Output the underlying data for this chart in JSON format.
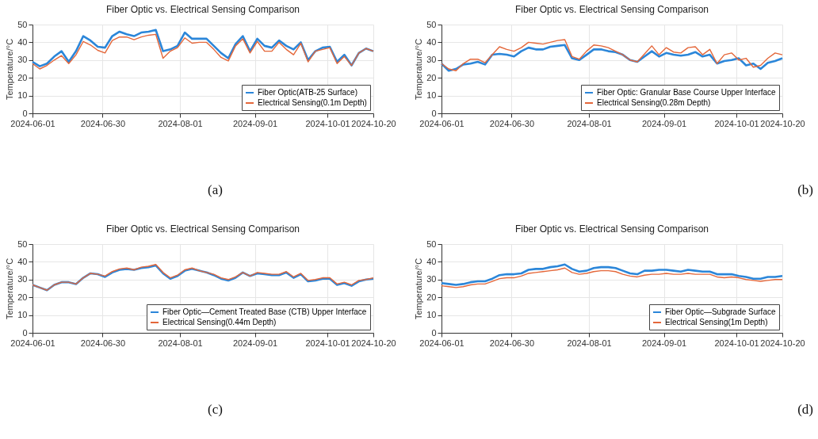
{
  "chart_data": [
    {
      "type": "line",
      "title": "Fiber Optic vs. Electrical Sensing Comparison",
      "ylabel": "Temperature/°C",
      "annotations": [
        "(a)"
      ],
      "x": [
        "2024-06-01",
        "2024-06-04",
        "2024-06-07",
        "2024-06-10",
        "2024-06-13",
        "2024-06-16",
        "2024-06-19",
        "2024-06-22",
        "2024-06-25",
        "2024-06-28",
        "2024-07-01",
        "2024-07-04",
        "2024-07-07",
        "2024-07-10",
        "2024-07-13",
        "2024-07-16",
        "2024-07-19",
        "2024-07-22",
        "2024-07-25",
        "2024-07-28",
        "2024-07-31",
        "2024-08-03",
        "2024-08-06",
        "2024-08-09",
        "2024-08-12",
        "2024-08-15",
        "2024-08-18",
        "2024-08-21",
        "2024-08-24",
        "2024-08-27",
        "2024-08-30",
        "2024-09-02",
        "2024-09-05",
        "2024-09-08",
        "2024-09-11",
        "2024-09-14",
        "2024-09-17",
        "2024-09-20",
        "2024-09-23",
        "2024-09-26",
        "2024-09-29",
        "2024-10-02",
        "2024-10-05",
        "2024-10-08",
        "2024-10-11",
        "2024-10-14",
        "2024-10-17",
        "2024-10-20"
      ],
      "series": [
        {
          "name": "Fiber Optic(ATB-25 Surface)",
          "color": "#2b86d9",
          "values": [
            29,
            26.5,
            28,
            32,
            35,
            29,
            35,
            43.5,
            41,
            37.5,
            37,
            43.5,
            46,
            44.5,
            43.5,
            45.5,
            46,
            47,
            35,
            36,
            38,
            45.5,
            42,
            42,
            42,
            38,
            34,
            31,
            39,
            43.5,
            35,
            42,
            38,
            37,
            41,
            38,
            36,
            40,
            30,
            35,
            37,
            37.5,
            29,
            33,
            27,
            34,
            36.5,
            35
          ]
        },
        {
          "name": "Electrical Sensing(0.1m Depth)",
          "color": "#e4673a",
          "values": [
            28,
            25,
            27,
            30,
            32.5,
            28,
            33,
            40.5,
            38.5,
            35.5,
            34,
            41,
            43,
            43,
            41.5,
            43,
            44,
            44.5,
            31,
            35,
            37,
            42.5,
            39.5,
            40,
            40,
            36,
            31.5,
            29.5,
            38,
            42,
            34,
            40.5,
            35,
            35,
            40,
            36,
            33,
            39.5,
            29,
            35,
            36,
            37,
            28,
            32,
            27,
            34,
            36.5,
            35
          ]
        }
      ],
      "xlim": [
        "2024-06-01",
        "2024-10-20"
      ],
      "xticks": [
        "2024-06-01",
        "2024-06-30",
        "2024-08-01",
        "2024-09-01",
        "2024-10-01",
        "2024-10-20"
      ],
      "ylim": [
        0,
        50
      ],
      "yticks": [
        0,
        10,
        20,
        30,
        40,
        50
      ],
      "grid": true,
      "legend": "bottom right"
    },
    {
      "type": "line",
      "title": "Fiber Optic vs. Electrical Sensing Comparison",
      "ylabel": "Temperature/°C",
      "annotations": [
        "(b)"
      ],
      "x": [
        "2024-06-01",
        "2024-06-04",
        "2024-06-07",
        "2024-06-10",
        "2024-06-13",
        "2024-06-16",
        "2024-06-19",
        "2024-06-22",
        "2024-06-25",
        "2024-06-28",
        "2024-07-01",
        "2024-07-04",
        "2024-07-07",
        "2024-07-10",
        "2024-07-13",
        "2024-07-16",
        "2024-07-19",
        "2024-07-22",
        "2024-07-25",
        "2024-07-28",
        "2024-07-31",
        "2024-08-03",
        "2024-08-06",
        "2024-08-09",
        "2024-08-12",
        "2024-08-15",
        "2024-08-18",
        "2024-08-21",
        "2024-08-24",
        "2024-08-27",
        "2024-08-30",
        "2024-09-02",
        "2024-09-05",
        "2024-09-08",
        "2024-09-11",
        "2024-09-14",
        "2024-09-17",
        "2024-09-20",
        "2024-09-23",
        "2024-09-26",
        "2024-09-29",
        "2024-10-02",
        "2024-10-05",
        "2024-10-08",
        "2024-10-11",
        "2024-10-14",
        "2024-10-17",
        "2024-10-20"
      ],
      "series": [
        {
          "name": "Fiber Optic: Granular Base Course Upper Interface",
          "color": "#2b86d9",
          "values": [
            28,
            24,
            25,
            27.5,
            28,
            29,
            27.5,
            33,
            33.5,
            33,
            32,
            35,
            37,
            36,
            36,
            37.5,
            38,
            38.5,
            31,
            30,
            33,
            36,
            36,
            35,
            34.5,
            33,
            30,
            29,
            32,
            35,
            32,
            34,
            33,
            32.5,
            33,
            34.5,
            32,
            33,
            28,
            29.5,
            30,
            31,
            27,
            28,
            25,
            28.5,
            29.5,
            31
          ]
        },
        {
          "name": "Electrical Sensing(0.28m Depth)",
          "color": "#e4673a",
          "values": [
            28,
            25,
            24,
            28,
            30.5,
            30.5,
            28.5,
            33,
            37.5,
            36,
            35,
            37,
            40,
            39.5,
            39,
            40,
            41,
            41.5,
            32,
            30.5,
            35,
            38.5,
            38,
            37,
            35,
            33,
            30,
            29,
            33.5,
            38,
            33,
            37,
            34.5,
            34,
            37,
            37.5,
            33,
            36,
            28,
            33,
            34,
            30,
            31,
            26,
            27,
            31,
            34,
            33
          ]
        }
      ],
      "xlim": [
        "2024-06-01",
        "2024-10-20"
      ],
      "xticks": [
        "2024-06-01",
        "2024-06-30",
        "2024-08-01",
        "2024-09-01",
        "2024-10-01",
        "2024-10-20"
      ],
      "ylim": [
        0,
        50
      ],
      "yticks": [
        0,
        10,
        20,
        30,
        40,
        50
      ],
      "grid": true,
      "legend": "bottom right"
    },
    {
      "type": "line",
      "title": "Fiber Optic vs. Electrical Sensing Comparison",
      "ylabel": "Temperature/°C",
      "annotations": [
        "(c)"
      ],
      "x": [
        "2024-06-01",
        "2024-06-04",
        "2024-06-07",
        "2024-06-10",
        "2024-06-13",
        "2024-06-16",
        "2024-06-19",
        "2024-06-22",
        "2024-06-25",
        "2024-06-28",
        "2024-07-01",
        "2024-07-04",
        "2024-07-07",
        "2024-07-10",
        "2024-07-13",
        "2024-07-16",
        "2024-07-19",
        "2024-07-22",
        "2024-07-25",
        "2024-07-28",
        "2024-07-31",
        "2024-08-03",
        "2024-08-06",
        "2024-08-09",
        "2024-08-12",
        "2024-08-15",
        "2024-08-18",
        "2024-08-21",
        "2024-08-24",
        "2024-08-27",
        "2024-08-30",
        "2024-09-02",
        "2024-09-05",
        "2024-09-08",
        "2024-09-11",
        "2024-09-14",
        "2024-09-17",
        "2024-09-20",
        "2024-09-23",
        "2024-09-26",
        "2024-09-29",
        "2024-10-02",
        "2024-10-05",
        "2024-10-08",
        "2024-10-11",
        "2024-10-14",
        "2024-10-17",
        "2024-10-20"
      ],
      "series": [
        {
          "name": "Fiber Optic—Cement Treated Base (CTB) Upper Interface",
          "color": "#2b86d9",
          "values": [
            27,
            25.5,
            24,
            27,
            28.5,
            28.5,
            27.5,
            31,
            33.5,
            33,
            31.5,
            34,
            35.5,
            36,
            35.5,
            36.5,
            37,
            38,
            33.5,
            30.5,
            32,
            35,
            36,
            35,
            34,
            32.5,
            30.5,
            29.5,
            31,
            34,
            32,
            33.5,
            33,
            32.5,
            32.5,
            34,
            31,
            33,
            29,
            29.5,
            30.5,
            30.5,
            27,
            28,
            26.5,
            29,
            30,
            30.5
          ]
        },
        {
          "name": "Electrical Sensing(0.44m Depth)",
          "color": "#e4673a",
          "values": [
            27,
            25.5,
            24,
            27,
            28.5,
            28.5,
            27.5,
            31,
            33.5,
            33,
            32,
            34.5,
            36,
            36.5,
            35.5,
            37,
            37.5,
            38.5,
            34,
            31,
            32.5,
            35.5,
            36.5,
            35,
            34,
            33,
            31,
            30,
            31.5,
            34,
            32,
            34,
            33.5,
            33,
            33,
            34.5,
            31.5,
            33.5,
            29.5,
            30,
            31,
            31,
            27.5,
            28.5,
            27,
            29.5,
            30,
            31
          ]
        }
      ],
      "xlim": [
        "2024-06-01",
        "2024-10-20"
      ],
      "xticks": [
        "2024-06-01",
        "2024-06-30",
        "2024-08-01",
        "2024-09-01",
        "2024-10-01",
        "2024-10-20"
      ],
      "ylim": [
        0,
        50
      ],
      "yticks": [
        0,
        10,
        20,
        30,
        40,
        50
      ],
      "grid": true,
      "legend": "bottom right"
    },
    {
      "type": "line",
      "title": "Fiber Optic vs. Electrical Sensing Comparison",
      "ylabel": "Temperature/°C",
      "annotations": [
        "(d)"
      ],
      "x": [
        "2024-06-01",
        "2024-06-04",
        "2024-06-07",
        "2024-06-10",
        "2024-06-13",
        "2024-06-16",
        "2024-06-19",
        "2024-06-22",
        "2024-06-25",
        "2024-06-28",
        "2024-07-01",
        "2024-07-04",
        "2024-07-07",
        "2024-07-10",
        "2024-07-13",
        "2024-07-16",
        "2024-07-19",
        "2024-07-22",
        "2024-07-25",
        "2024-07-28",
        "2024-07-31",
        "2024-08-03",
        "2024-08-06",
        "2024-08-09",
        "2024-08-12",
        "2024-08-15",
        "2024-08-18",
        "2024-08-21",
        "2024-08-24",
        "2024-08-27",
        "2024-08-30",
        "2024-09-02",
        "2024-09-05",
        "2024-09-08",
        "2024-09-11",
        "2024-09-14",
        "2024-09-17",
        "2024-09-20",
        "2024-09-23",
        "2024-09-26",
        "2024-09-29",
        "2024-10-02",
        "2024-10-05",
        "2024-10-08",
        "2024-10-11",
        "2024-10-14",
        "2024-10-17",
        "2024-10-20"
      ],
      "series": [
        {
          "name": "Fiber Optic—Subgrade Surface",
          "color": "#2b86d9",
          "values": [
            28,
            27.5,
            27,
            27.5,
            28.5,
            29,
            29,
            30.5,
            32.5,
            33,
            33,
            33.5,
            35.5,
            36,
            36,
            37,
            37.5,
            38.5,
            36,
            34.5,
            35,
            36.5,
            37,
            37,
            36.5,
            35,
            33.5,
            33,
            35,
            35,
            35.5,
            35.5,
            35,
            34.5,
            35.5,
            35,
            34.5,
            34.5,
            33,
            33,
            33,
            32,
            31.5,
            30.5,
            30.5,
            31.5,
            31.5,
            32
          ]
        },
        {
          "name": "Electrical Sensing(1m Depth)",
          "color": "#e4673a",
          "values": [
            26.5,
            26,
            25.5,
            26,
            27,
            27.5,
            27.5,
            29,
            30.5,
            31,
            31,
            32,
            33.5,
            34,
            34.5,
            35,
            35.5,
            36.5,
            34,
            33,
            33.5,
            34.5,
            35,
            35,
            34.5,
            33,
            32,
            31.5,
            32.5,
            33,
            33,
            33.5,
            33,
            33,
            33.5,
            33,
            33,
            33,
            31.5,
            31,
            31.5,
            31,
            30,
            29.5,
            29,
            29.5,
            30,
            30
          ]
        }
      ],
      "xlim": [
        "2024-06-01",
        "2024-10-20"
      ],
      "xticks": [
        "2024-06-01",
        "2024-06-30",
        "2024-08-01",
        "2024-09-01",
        "2024-10-01",
        "2024-10-20"
      ],
      "ylim": [
        0,
        50
      ],
      "yticks": [
        0,
        10,
        20,
        30,
        40,
        50
      ],
      "grid": true,
      "legend": "bottom right"
    }
  ]
}
